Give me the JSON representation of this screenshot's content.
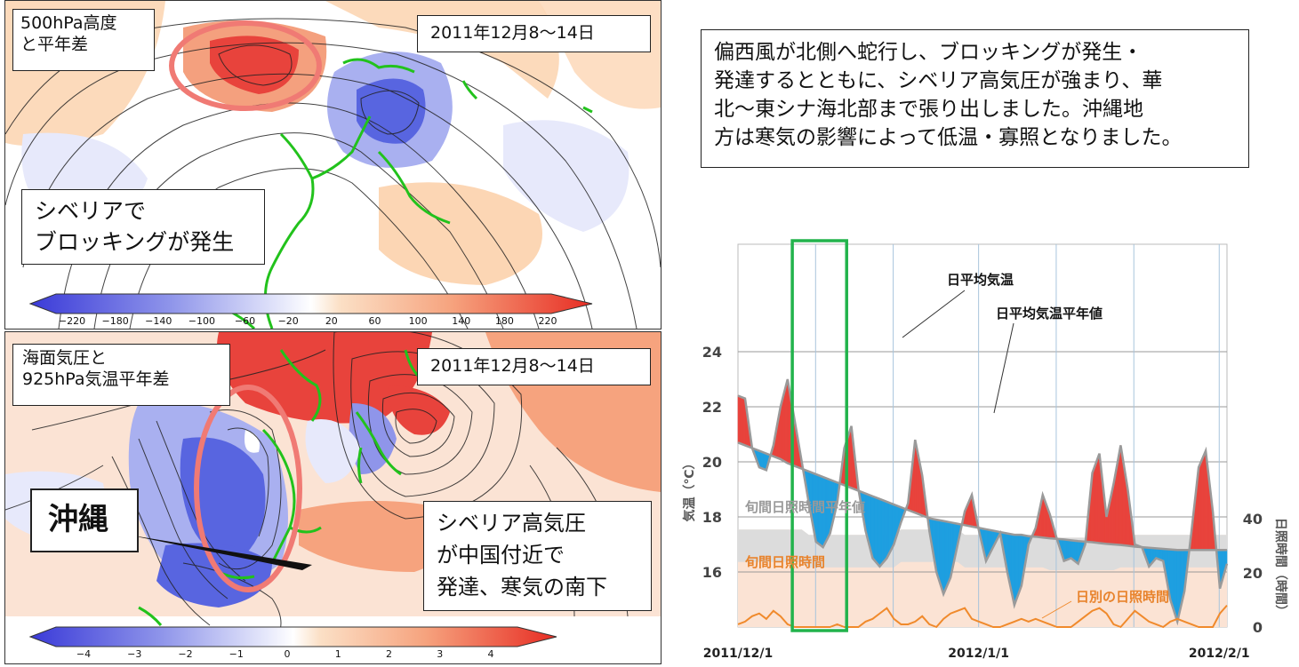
{
  "top_map": {
    "label": "500hPa高度\nと平年差",
    "date": "2011年12月8〜14日",
    "note": "シベリアで\nブロッキングが発生",
    "colorbar_ticks": [
      "−220",
      "−180",
      "−140",
      "−100",
      "−60",
      "−20",
      "20",
      "60",
      "100",
      "140",
      "180",
      "220"
    ]
  },
  "bottom_map": {
    "label": "海面気圧と\n925hPa気温平年差",
    "date": "2011年12月8〜14日",
    "okinawa_label": "沖縄",
    "note": "シベリア高気圧\nが中国付近で\n発達、寒気の南下",
    "colorbar_ticks": [
      "−4",
      "−3",
      "−2",
      "−1",
      "0",
      "1",
      "2",
      "3",
      "4"
    ]
  },
  "description": "偏西風が北側へ蛇行し、ブロッキングが発生・\n発達するとともに、シベリア高気圧が強まり、華\n北〜東シナ海北部まで張り出しました。沖縄地\n方は寒気の影響によって低温・寡照となりました。",
  "colors": {
    "warm": "#e8433c",
    "cold": "#1e9fe0",
    "sun_fill": "#fbe3d4",
    "sun_normal": "#dcdcdc",
    "sun_line": "#f08a2c",
    "highlight_green": "#22b34c",
    "ellipse": "#f07a74",
    "coast": "#22c21c"
  },
  "chart_data": {
    "type": "area",
    "x_tick_labels": [
      "2011/12/1",
      "2012/1/1",
      "2012/2/1"
    ],
    "x_range": [
      "2011-12-01",
      "2012-02-02"
    ],
    "left_ylabel": "気温（℃）",
    "left_yticks": [
      16,
      18,
      20,
      22,
      24
    ],
    "left_ylim": [
      14,
      24
    ],
    "right_ylabel": "日照時間（時間）",
    "right_yticks": [
      0,
      20,
      40
    ],
    "right_ylim": [
      0,
      43
    ],
    "highlight_range": [
      "2011-12-08",
      "2011-12-14"
    ],
    "labels": {
      "daily_mean": "日平均気温",
      "daily_mean_normal": "日平均気温平年値",
      "sun_normal": "旬間日照時間平年値",
      "sun_10day": "旬間日照時間",
      "sun_daily": "日別の日照時間"
    },
    "series": [
      {
        "name": "日平均気温",
        "values": [
          22.4,
          22.3,
          20.5,
          19.8,
          19.7,
          20.6,
          22.0,
          23.0,
          21.5,
          20.0,
          18.5,
          17.1,
          16.9,
          17.4,
          18.5,
          20.5,
          21.3,
          19.0,
          17.5,
          16.5,
          16.2,
          16.5,
          17.0,
          17.8,
          18.5,
          20.8,
          19.5,
          17.5,
          16.0,
          15.2,
          15.8,
          17.0,
          18.2,
          18.8,
          17.5,
          16.4,
          16.9,
          17.4,
          16.0,
          14.8,
          15.5,
          17.0,
          17.6,
          18.8,
          18.1,
          17.2,
          16.4,
          16.5,
          16.3,
          17.0,
          19.6,
          20.3,
          18.0,
          19.2,
          20.6,
          19.0,
          17.0,
          16.9,
          16.2,
          16.5,
          16.4,
          15.0,
          14.2,
          15.3,
          17.5,
          19.8,
          20.4,
          18.2,
          15.4,
          16.3
        ]
      },
      {
        "name": "日平均気温平年値",
        "values": [
          20.7,
          20.6,
          20.5,
          20.4,
          20.3,
          20.2,
          20.1,
          19.95,
          19.85,
          19.75,
          19.65,
          19.55,
          19.45,
          19.35,
          19.25,
          19.15,
          19.05,
          18.95,
          18.85,
          18.75,
          18.65,
          18.55,
          18.45,
          18.35,
          18.25,
          18.15,
          18.05,
          17.95,
          17.9,
          17.85,
          17.8,
          17.75,
          17.7,
          17.65,
          17.6,
          17.55,
          17.5,
          17.45,
          17.4,
          17.35,
          17.35,
          17.3,
          17.28,
          17.25,
          17.22,
          17.2,
          17.18,
          17.15,
          17.12,
          17.1,
          17.08,
          17.05,
          17.02,
          17.0,
          16.98,
          16.95,
          16.92,
          16.9,
          16.88,
          16.86,
          16.84,
          16.82,
          16.8,
          16.8,
          16.8,
          16.8,
          16.8,
          16.8,
          16.8,
          16.8
        ]
      },
      {
        "name": "旬間日照時間",
        "values": [
          36,
          36,
          36,
          36,
          36,
          36,
          36,
          36,
          36,
          36,
          34,
          34,
          34,
          34,
          34,
          34,
          34,
          34,
          34,
          34,
          34,
          34,
          34,
          36,
          36,
          36,
          36,
          36,
          36,
          36,
          36,
          36,
          34,
          34,
          34,
          34,
          34,
          34,
          34,
          34,
          34,
          34,
          34,
          34,
          33,
          33,
          33,
          33,
          33,
          33,
          33,
          33,
          33,
          33,
          34,
          34,
          34,
          34,
          34,
          34,
          34,
          34,
          34,
          34,
          34,
          34,
          34,
          34,
          34,
          34
        ]
      },
      {
        "name": "旬間日照時間平年値",
        "values": [
          36,
          36,
          36,
          36,
          36,
          36,
          36,
          36,
          36,
          36,
          34,
          34,
          34,
          34,
          34,
          34,
          34,
          34,
          34,
          34,
          34,
          34,
          34,
          36,
          36,
          36,
          36,
          36,
          36,
          36,
          36,
          36,
          34,
          34,
          34,
          34,
          34,
          34,
          34,
          34,
          34,
          34,
          34,
          34,
          33,
          33,
          33,
          33,
          33,
          33,
          33,
          33,
          33,
          33,
          34,
          34,
          34,
          34,
          34,
          34,
          34,
          34,
          34,
          34,
          34,
          34,
          34,
          34,
          34,
          34
        ]
      },
      {
        "name": "日別の日照時間",
        "values": [
          1,
          2,
          4,
          5,
          3,
          6,
          4,
          1,
          0,
          0,
          0,
          0,
          0,
          0,
          1,
          0,
          0,
          0,
          2,
          3,
          5,
          7,
          3,
          1,
          1,
          2,
          4,
          1,
          0,
          3,
          5,
          6,
          7,
          3,
          2,
          1,
          0,
          0,
          1,
          2,
          3,
          2,
          3,
          2,
          1,
          0,
          0,
          0,
          2,
          4,
          6,
          7,
          5,
          1,
          0,
          3,
          6,
          4,
          2,
          1,
          0,
          2,
          3,
          2,
          1,
          0,
          0,
          0,
          5,
          8
        ]
      }
    ]
  }
}
